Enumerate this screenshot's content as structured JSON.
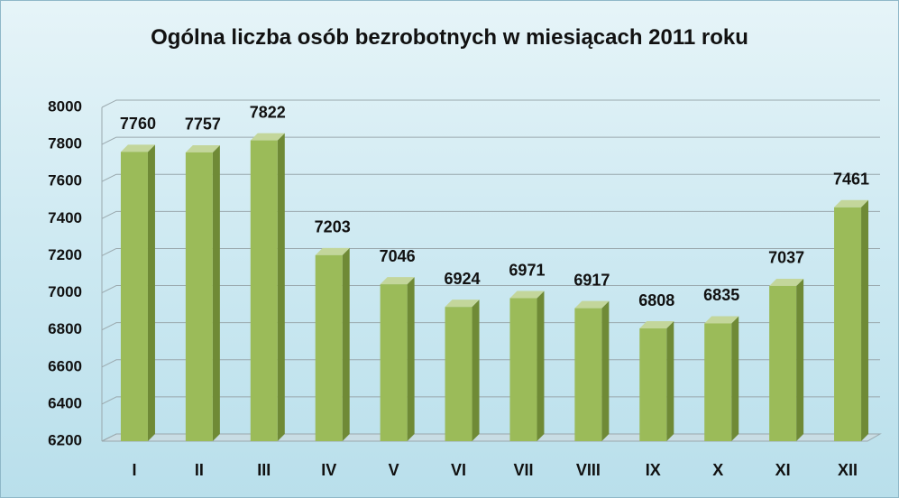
{
  "chart_data": {
    "type": "bar",
    "title": "Ogólna liczba osób bezrobotnych w miesiącach 2011 roku",
    "categories": [
      "I",
      "II",
      "III",
      "IV",
      "V",
      "VI",
      "VII",
      "VIII",
      "IX",
      "X",
      "XI",
      "XII"
    ],
    "values": [
      7760,
      7757,
      7822,
      7203,
      7046,
      6924,
      6971,
      6917,
      6808,
      6835,
      7037,
      7461
    ],
    "color": "#9bbb59",
    "ylim": [
      6200,
      8000
    ],
    "yticks": [
      6200,
      6400,
      6600,
      6800,
      7000,
      7200,
      7400,
      7600,
      7800,
      8000
    ],
    "grid": true
  }
}
